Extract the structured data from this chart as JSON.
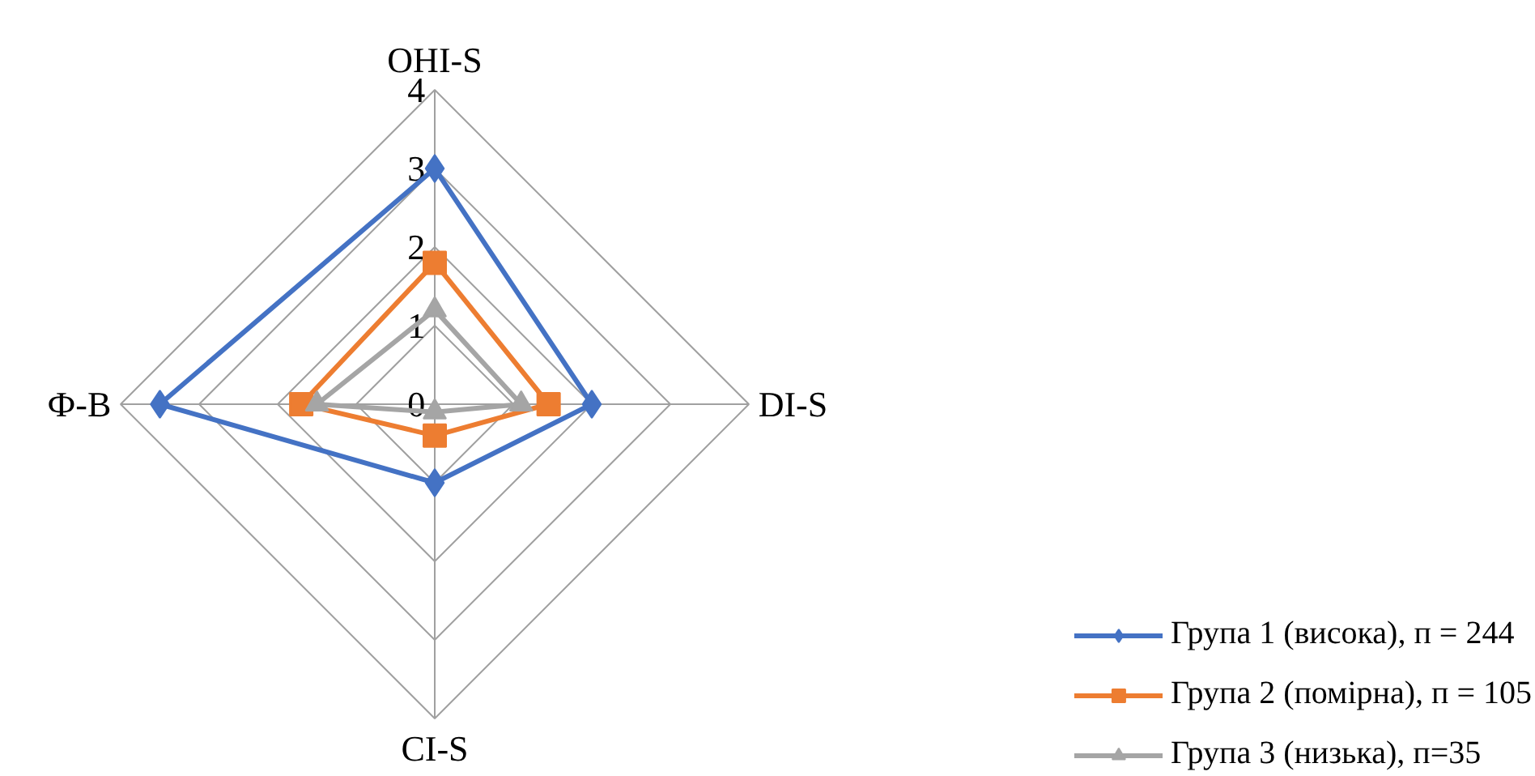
{
  "chart_data": {
    "type": "radar",
    "categories": [
      "OHI-S",
      "DI-S",
      "CI-S",
      "Ф-В"
    ],
    "ylim": [
      0,
      4
    ],
    "yticks": [
      0,
      1,
      2,
      3,
      4
    ],
    "grid": true,
    "legend": "bottom right",
    "line_style": "solid",
    "series": [
      {
        "name": "Група 1 (висока), п = 244",
        "color": "#4472c4",
        "marker": "diamond",
        "values": [
          3.0,
          2.0,
          1.0,
          3.5
        ]
      },
      {
        "name": "Група 2 (помірна), п = 105",
        "color": "#ed7d31",
        "marker": "square",
        "values": [
          1.8,
          1.45,
          0.4,
          1.7
        ]
      },
      {
        "name": "Група 3 (низька), п=35",
        "color": "#a5a5a5",
        "marker": "triangle",
        "values": [
          1.2,
          1.1,
          0.1,
          1.5
        ]
      }
    ]
  }
}
